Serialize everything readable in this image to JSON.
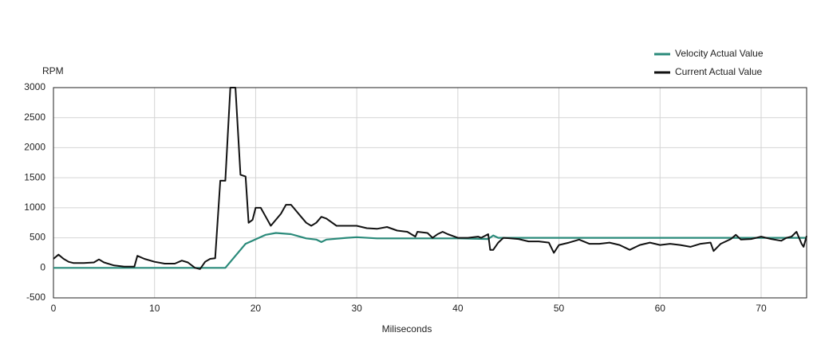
{
  "chart_data": {
    "type": "line",
    "y_label": "RPM",
    "x_label": "Miliseconds",
    "xlim": [
      0,
      74.5
    ],
    "ylim": [
      -500,
      3000
    ],
    "xticks": [
      0,
      10,
      20,
      30,
      40,
      50,
      60,
      70
    ],
    "yticks": [
      -500,
      0,
      500,
      1000,
      1500,
      2000,
      2500,
      3000
    ],
    "grid": true,
    "legend": "top-right",
    "series": [
      {
        "name": "Velocity Actual Value",
        "color": "#2a8a7a",
        "x": [
          0,
          17,
          19,
          21,
          22,
          23.5,
          25,
          26,
          26.5,
          27,
          29,
          30,
          32,
          40,
          43,
          43.5,
          44,
          74.5
        ],
        "values": [
          0,
          0,
          400,
          550,
          580,
          560,
          490,
          470,
          430,
          470,
          500,
          510,
          490,
          490,
          480,
          540,
          500,
          500
        ]
      },
      {
        "name": "Current Actual Value",
        "color": "#111111",
        "x": [
          0,
          0.5,
          1,
          1.5,
          2,
          3,
          4,
          4.5,
          5,
          6,
          7,
          8,
          8.3,
          9,
          10,
          11,
          12,
          12.7,
          13.3,
          14,
          14.5,
          15,
          15.5,
          16,
          16.5,
          17,
          17.5,
          18,
          18.5,
          19,
          19.3,
          19.7,
          20,
          20.5,
          21,
          21.5,
          22,
          22.5,
          23,
          23.5,
          24,
          24.5,
          25,
          25.5,
          26,
          26.5,
          27,
          28,
          29,
          30,
          31,
          32,
          33,
          34,
          35,
          35.8,
          36,
          37,
          37.5,
          38,
          38.5,
          39,
          40,
          41,
          42,
          42.3,
          43,
          43.2,
          43.5,
          44,
          44.5,
          46,
          47,
          48,
          49,
          49.5,
          50,
          51,
          52,
          53,
          54,
          55,
          56,
          57,
          58,
          59,
          60,
          61,
          62,
          63,
          64,
          65,
          65.3,
          66,
          67,
          67.5,
          68,
          69,
          70,
          71,
          72,
          72.5,
          73,
          73.5,
          74,
          74.2,
          74.5
        ],
        "values": [
          150,
          220,
          150,
          100,
          80,
          80,
          90,
          140,
          90,
          40,
          20,
          20,
          200,
          150,
          100,
          70,
          70,
          120,
          90,
          0,
          -20,
          100,
          150,
          160,
          1450,
          1450,
          3000,
          3000,
          1550,
          1520,
          750,
          800,
          1000,
          1000,
          850,
          700,
          800,
          900,
          1050,
          1050,
          950,
          850,
          750,
          700,
          750,
          850,
          820,
          700,
          700,
          700,
          660,
          650,
          680,
          620,
          600,
          520,
          600,
          580,
          500,
          560,
          600,
          560,
          500,
          500,
          520,
          500,
          560,
          300,
          300,
          420,
          500,
          480,
          440,
          440,
          420,
          250,
          380,
          420,
          470,
          400,
          400,
          420,
          380,
          300,
          380,
          420,
          380,
          400,
          380,
          350,
          400,
          420,
          280,
          400,
          480,
          550,
          470,
          480,
          520,
          480,
          450,
          500,
          520,
          600,
          400,
          350,
          530
        ]
      }
    ]
  }
}
